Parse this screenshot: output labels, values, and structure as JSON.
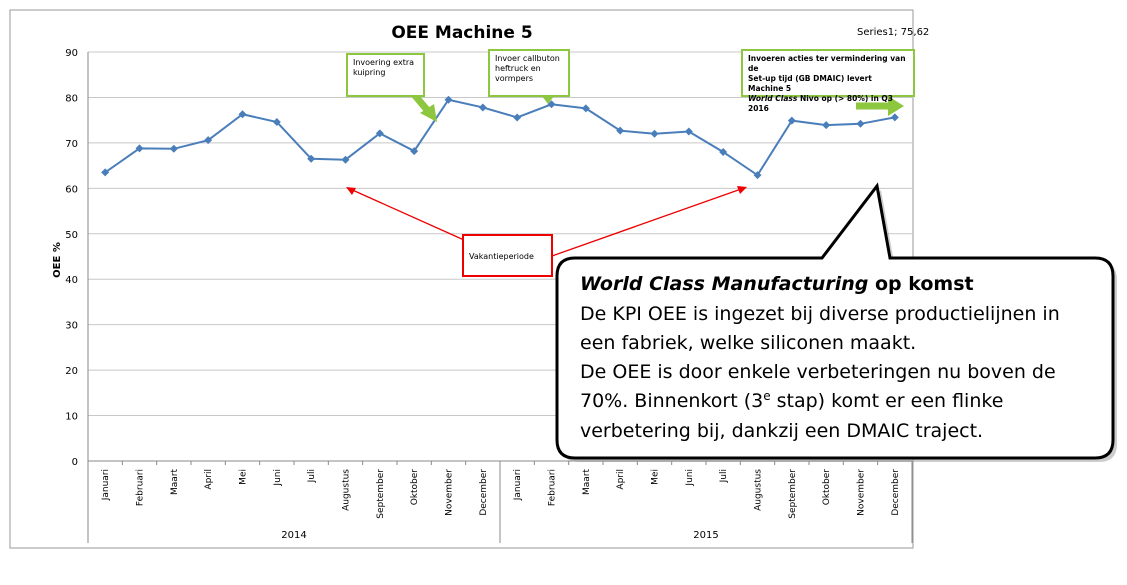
{
  "chart_data": {
    "type": "line",
    "title": "OEE Machine 5",
    "series_label": "Series1; 75,62",
    "y_label": "OEE %",
    "categories": [
      "Januari",
      "Februari",
      "Maart",
      "April",
      "Mei",
      "Juni",
      "Juli",
      "Augustus",
      "September",
      "Oktober",
      "November",
      "December",
      "Januari",
      "Februari",
      "Maart",
      "April",
      "Mei",
      "Juni",
      "Juli",
      "Augustus",
      "September",
      "Oktober",
      "November",
      "December"
    ],
    "year_groups": [
      "2014",
      "2015"
    ],
    "series": [
      {
        "name": "Series1",
        "color": "#4a7ebb",
        "values": [
          63.5,
          68.8,
          68.7,
          70.6,
          76.3,
          74.6,
          66.5,
          66.3,
          72.1,
          68.2,
          79.5,
          77.8,
          75.6,
          78.5,
          77.6,
          72.7,
          72.0,
          72.5,
          68.0,
          62.9,
          74.9,
          73.9,
          74.2,
          75.62
        ]
      }
    ],
    "ylim": [
      0,
      90
    ],
    "yticks": [
      0,
      10,
      20,
      30,
      40,
      50,
      60,
      70,
      80,
      90
    ],
    "grid": true
  },
  "annotations": {
    "kuipring": "Invoering extra kuipring",
    "callbuton": "Invoer callbuton heftruck en vormpers",
    "acties": {
      "line1": "Invoeren acties ter vermindering van de",
      "line2": "Set-up tijd (GB DMAIC) levert Machine 5",
      "italic": "World Class",
      "rest": " Nivo op (> 80%) in Q3 2016"
    },
    "vakantie": "Vakantieperiode"
  },
  "callout": {
    "title_italic": "World Class Manufacturing",
    "title_rest": " op komst",
    "line1": "De KPI OEE is ingezet bij diverse productielijnen in",
    "line2": "een fabriek, welke siliconen maakt.",
    "line3": "De OEE is door enkele verbeteringen nu boven de",
    "line4_before": "70%. Binnenkort (3",
    "line4_sup": "e",
    "line4_after": " stap) komt er een flinke",
    "line5": "verbetering bij, dankzij een DMAIC traject."
  }
}
